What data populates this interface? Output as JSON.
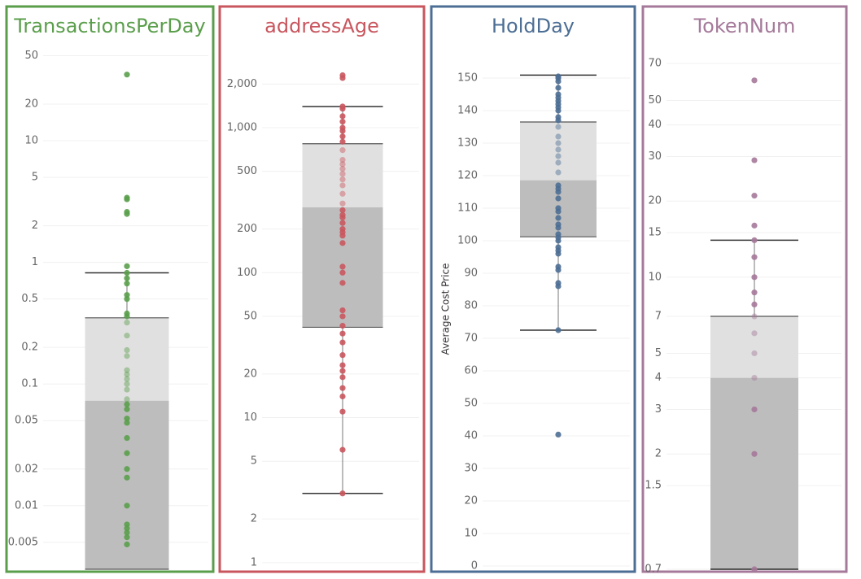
{
  "chart_data": [
    {
      "type": "box",
      "title": "TransactionsPerDay",
      "color": "#5a9e4b",
      "scale": "log",
      "ylim": [
        0.003,
        57
      ],
      "yticks": [
        50,
        20,
        10,
        5,
        2,
        1,
        0.5,
        0.2,
        0.1,
        0.05,
        0.02,
        0.01,
        0.005
      ],
      "box": {
        "whisker_high": 0.82,
        "q3": 0.35,
        "median": 0.073,
        "q1": 0.003
      },
      "values": [
        35,
        3.4,
        3.3,
        2.6,
        2.5,
        0.93,
        0.82,
        0.74,
        0.67,
        0.54,
        0.5,
        0.38,
        0.36,
        0.32,
        0.25,
        0.19,
        0.17,
        0.13,
        0.12,
        0.11,
        0.1,
        0.09,
        0.075,
        0.068,
        0.062,
        0.052,
        0.048,
        0.036,
        0.027,
        0.02,
        0.017,
        0.01,
        0.007,
        0.0065,
        0.006,
        0.0055,
        0.0048
      ]
    },
    {
      "type": "box",
      "title": "addressAge",
      "color": "#c9565e",
      "scale": "log",
      "ylim": [
        0.9,
        3500
      ],
      "yticks": [
        {
          "value": 2000,
          "label": "2,000"
        },
        {
          "value": 1000,
          "label": "1,000"
        },
        500,
        200,
        100,
        50,
        20,
        10,
        5,
        2,
        1
      ],
      "box": {
        "whisker_high": 1400,
        "q3": 775,
        "median": 282,
        "q1": 42,
        "whisker_low": 3
      },
      "values": [
        2300,
        2200,
        1400,
        1350,
        1200,
        1100,
        1000,
        950,
        870,
        800,
        700,
        600,
        560,
        520,
        480,
        440,
        400,
        350,
        300,
        270,
        250,
        240,
        220,
        200,
        190,
        180,
        160,
        110,
        100,
        85,
        55,
        50,
        43,
        38,
        33,
        27,
        23,
        21,
        19,
        16,
        14,
        11,
        6,
        3
      ]
    },
    {
      "type": "box",
      "title": "HoldDay",
      "color": "#4c6e94",
      "scale": "linear",
      "ylabel": "Average Cost Price",
      "ylim": [
        -1,
        159
      ],
      "yticks": [
        150,
        140,
        130,
        120,
        110,
        100,
        90,
        80,
        70,
        60,
        50,
        40,
        30,
        20,
        10,
        0
      ],
      "box": {
        "whisker_high": 150.9,
        "q3": 136.5,
        "median": 118.6,
        "q1": 101.2,
        "whisker_low": 72.5
      },
      "values": [
        150.5,
        150,
        149,
        147,
        145,
        144,
        143,
        142,
        141,
        140,
        138,
        137,
        135,
        132,
        130,
        128,
        126,
        124,
        121,
        117,
        116,
        115,
        113,
        110,
        109,
        107,
        105,
        104,
        102,
        101,
        100,
        98,
        97,
        96,
        92,
        91,
        87,
        86,
        72.5,
        40.4
      ]
    },
    {
      "type": "box",
      "title": "TokenNum",
      "color": "#a5799a",
      "scale": "log",
      "ylim": [
        0.7,
        80
      ],
      "yticks": [
        70,
        50,
        40,
        30,
        20,
        15,
        10,
        7,
        5,
        4,
        3,
        2,
        1.5,
        0.7
      ],
      "box": {
        "whisker_high": 14,
        "q3": 7,
        "median": 4,
        "q1": 0.7,
        "whisker_low": 0.7
      },
      "values": [
        60,
        29,
        21,
        16,
        14,
        12,
        10,
        8.7,
        7.8,
        7,
        6,
        5,
        4,
        3,
        2,
        0.7
      ]
    }
  ]
}
